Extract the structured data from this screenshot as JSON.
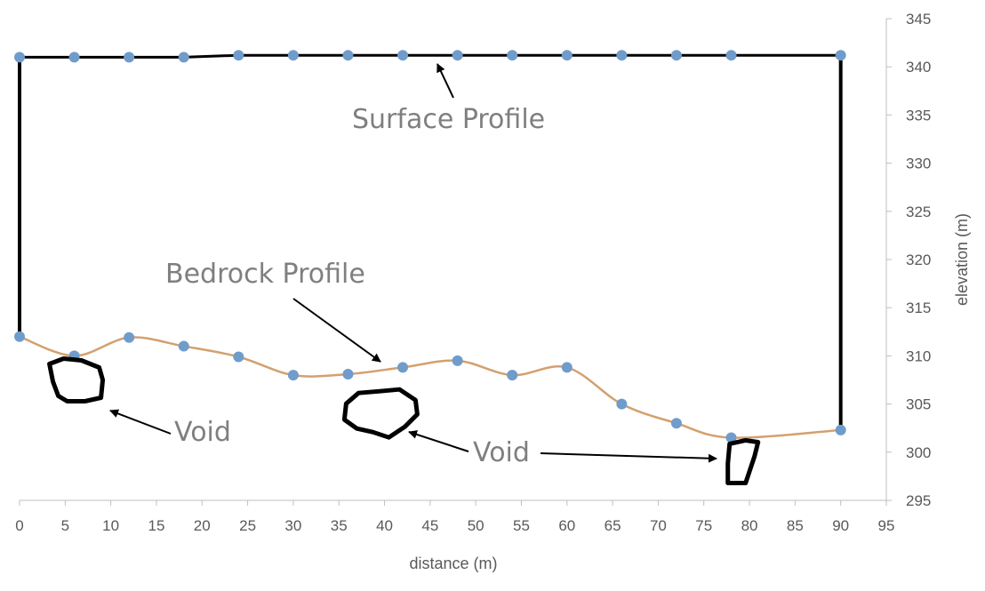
{
  "chart_data": {
    "type": "line",
    "title": "",
    "xlabel": "distance (m)",
    "ylabel": "elevation (m)",
    "xlim": [
      0,
      95
    ],
    "ylim": [
      295,
      345
    ],
    "x_ticks": [
      0,
      5,
      10,
      15,
      20,
      25,
      30,
      35,
      40,
      45,
      50,
      55,
      60,
      65,
      70,
      75,
      80,
      85,
      90,
      95
    ],
    "y_ticks": [
      295,
      300,
      305,
      310,
      315,
      320,
      325,
      330,
      335,
      340,
      345
    ],
    "y_axis_side": "right",
    "grid": false,
    "legend": "none",
    "series": [
      {
        "name": "Surface Profile",
        "color": "#000000",
        "marker_color": "#6f9ccb",
        "x": [
          0,
          6,
          12,
          18,
          24,
          30,
          36,
          42,
          48,
          54,
          60,
          66,
          72,
          78,
          90
        ],
        "y": [
          341.0,
          341.0,
          341.0,
          341.0,
          341.2,
          341.2,
          341.2,
          341.2,
          341.2,
          341.2,
          341.2,
          341.2,
          341.2,
          341.2,
          341.2
        ]
      },
      {
        "name": "Bedrock Profile",
        "color": "#d4a06e",
        "marker_color": "#6f9ccb",
        "x": [
          0,
          6,
          12,
          18,
          24,
          30,
          36,
          42,
          48,
          54,
          60,
          66,
          72,
          78,
          90
        ],
        "y": [
          312.0,
          310.0,
          311.9,
          311.0,
          309.9,
          308.0,
          308.1,
          308.8,
          309.5,
          308.0,
          308.8,
          305.0,
          303.0,
          301.5,
          302.3
        ]
      }
    ],
    "box_edges": [
      {
        "x": 0,
        "y_from": 312.0,
        "y_to": 341.0
      },
      {
        "x": 90,
        "y_from": 302.3,
        "y_to": 341.2
      }
    ],
    "annotations": [
      {
        "text": "Surface Profile",
        "color": "#7f7f7f"
      },
      {
        "text": "Bedrock Profile",
        "color": "#7f7f7f"
      },
      {
        "text": "Void",
        "color": "#7f7f7f"
      },
      {
        "text": "Void",
        "color": "#7f7f7f"
      }
    ],
    "voids": [
      {
        "label": "Void",
        "x_center": 6,
        "y_center": 307.5
      },
      {
        "label": "Void",
        "x_center": 39.5,
        "y_center": 304.3
      },
      {
        "label": "Void",
        "x_center": 78.8,
        "y_center": 299.2
      }
    ]
  }
}
